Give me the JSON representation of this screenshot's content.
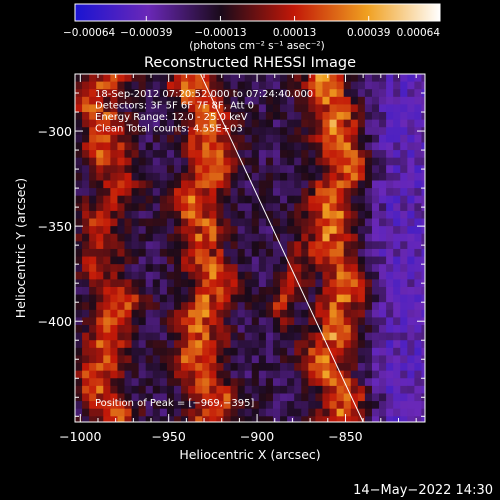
{
  "chart_data": {
    "type": "heatmap",
    "title": "Reconstructed RHESSI Image",
    "xlabel": "Heliocentric X (arcsec)",
    "ylabel": "Heliocentric Y (arcsec)",
    "xlim": [
      -1003,
      -805
    ],
    "ylim": [
      -453,
      -270
    ],
    "x_ticks": [
      -1000,
      -950,
      -900,
      -850
    ],
    "x_tick_labels": [
      "−1000",
      "−950",
      "−900",
      "−850"
    ],
    "y_ticks": [
      -300,
      -350,
      -400
    ],
    "y_tick_labels": [
      "−300",
      "−350",
      "−400"
    ],
    "colorbar": {
      "range": [
        -0.00064,
        0.00064
      ],
      "ticks": [
        -0.00064,
        -0.00039,
        -0.00013,
        0.00013,
        0.00039,
        0.00064
      ],
      "tick_labels": [
        "−0.00064",
        "−0.00039",
        "−0.00013",
        "0.00013",
        "0.00039",
        "0.00064"
      ],
      "units_label": "(photons cm⁻² s⁻¹ asec⁻²)",
      "colors": [
        "#1a14d2",
        "#6a28b8",
        "#1a0a1a",
        "#c21808",
        "#f0a020",
        "#ffffff"
      ]
    },
    "bands": [
      {
        "center_x": -985,
        "value": 0.0004
      },
      {
        "center_x": -930,
        "value": 0.00042
      },
      {
        "center_x": -855,
        "value": 0.00046
      },
      {
        "center_x": -880,
        "value": 0.0003
      }
    ],
    "limb_line": [
      [
        -932,
        -270
      ],
      [
        -840,
        -453
      ]
    ],
    "peak_marker": [
      -969,
      -395
    ],
    "annotations": [
      "18-Sep-2012 07:20:52.000 to 07:24:40.000",
      "Detectors: 3F 5F 6F 7F 8F, Att 0",
      "Energy Range: 12.0 - 25.0 keV",
      "Clean    Total counts: 4.55E+03"
    ],
    "peak_label": "Position of Peak = [−969,−395]"
  },
  "footer": {
    "timestamp": "14−May−2022 14:30"
  }
}
